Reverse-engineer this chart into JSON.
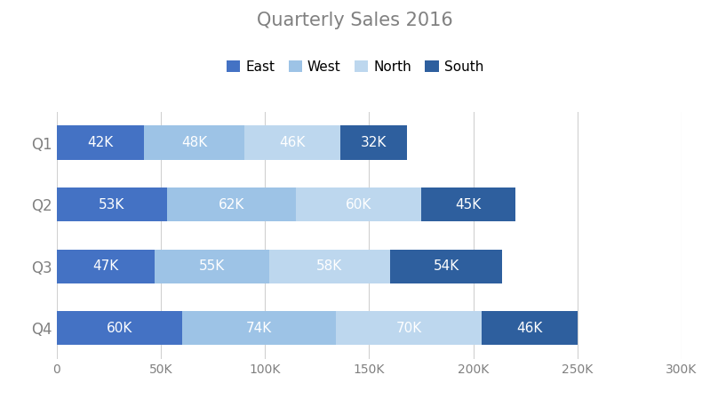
{
  "title": "Quarterly Sales 2016",
  "categories": [
    "Q1",
    "Q2",
    "Q3",
    "Q4"
  ],
  "series": {
    "East": [
      42000,
      53000,
      47000,
      60000
    ],
    "West": [
      48000,
      62000,
      55000,
      74000
    ],
    "North": [
      46000,
      60000,
      58000,
      70000
    ],
    "South": [
      32000,
      45000,
      54000,
      46000
    ]
  },
  "colors": {
    "East": "#4472C4",
    "West": "#9DC3E6",
    "North": "#BDD7EE",
    "South": "#2E5F9E"
  },
  "xlim": [
    0,
    300000
  ],
  "xticks": [
    0,
    50000,
    100000,
    150000,
    200000,
    250000,
    300000
  ],
  "xtick_labels": [
    "0",
    "50K",
    "100K",
    "150K",
    "200K",
    "250K",
    "300K"
  ],
  "background_color": "#FFFFFF",
  "title_color": "#808080",
  "title_fontsize": 15,
  "label_fontsize": 11,
  "bar_height": 0.55,
  "legend_labels": [
    "East",
    "West",
    "North",
    "South"
  ]
}
